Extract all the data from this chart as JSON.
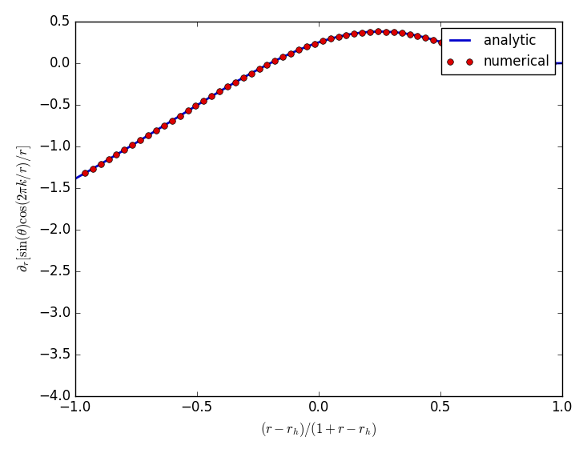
{
  "title": "",
  "xlabel": "$(r-r_h)/(1+r-r_h)$",
  "ylabel": "$\\partial_r[\\sin(\\theta)\\cos(2\\pi k/r)/r]$",
  "xlim": [
    -1.0,
    1.0
  ],
  "ylim": [
    -4.0,
    0.5
  ],
  "line_color": "#0000cc",
  "dot_color": "#dd0000",
  "line_width": 2.0,
  "dot_size": 5.5,
  "rh": 2.0,
  "k": 1.0,
  "n_analytic": 2000,
  "n_numerical": 60,
  "legend_loc": "upper right",
  "background_color": "#ffffff",
  "xticks": [
    -1.0,
    -0.5,
    0.0,
    0.5,
    1.0
  ],
  "yticks": [
    -4.0,
    -3.5,
    -3.0,
    -2.5,
    -2.0,
    -1.5,
    -1.0,
    -0.5,
    0.0,
    0.5
  ]
}
